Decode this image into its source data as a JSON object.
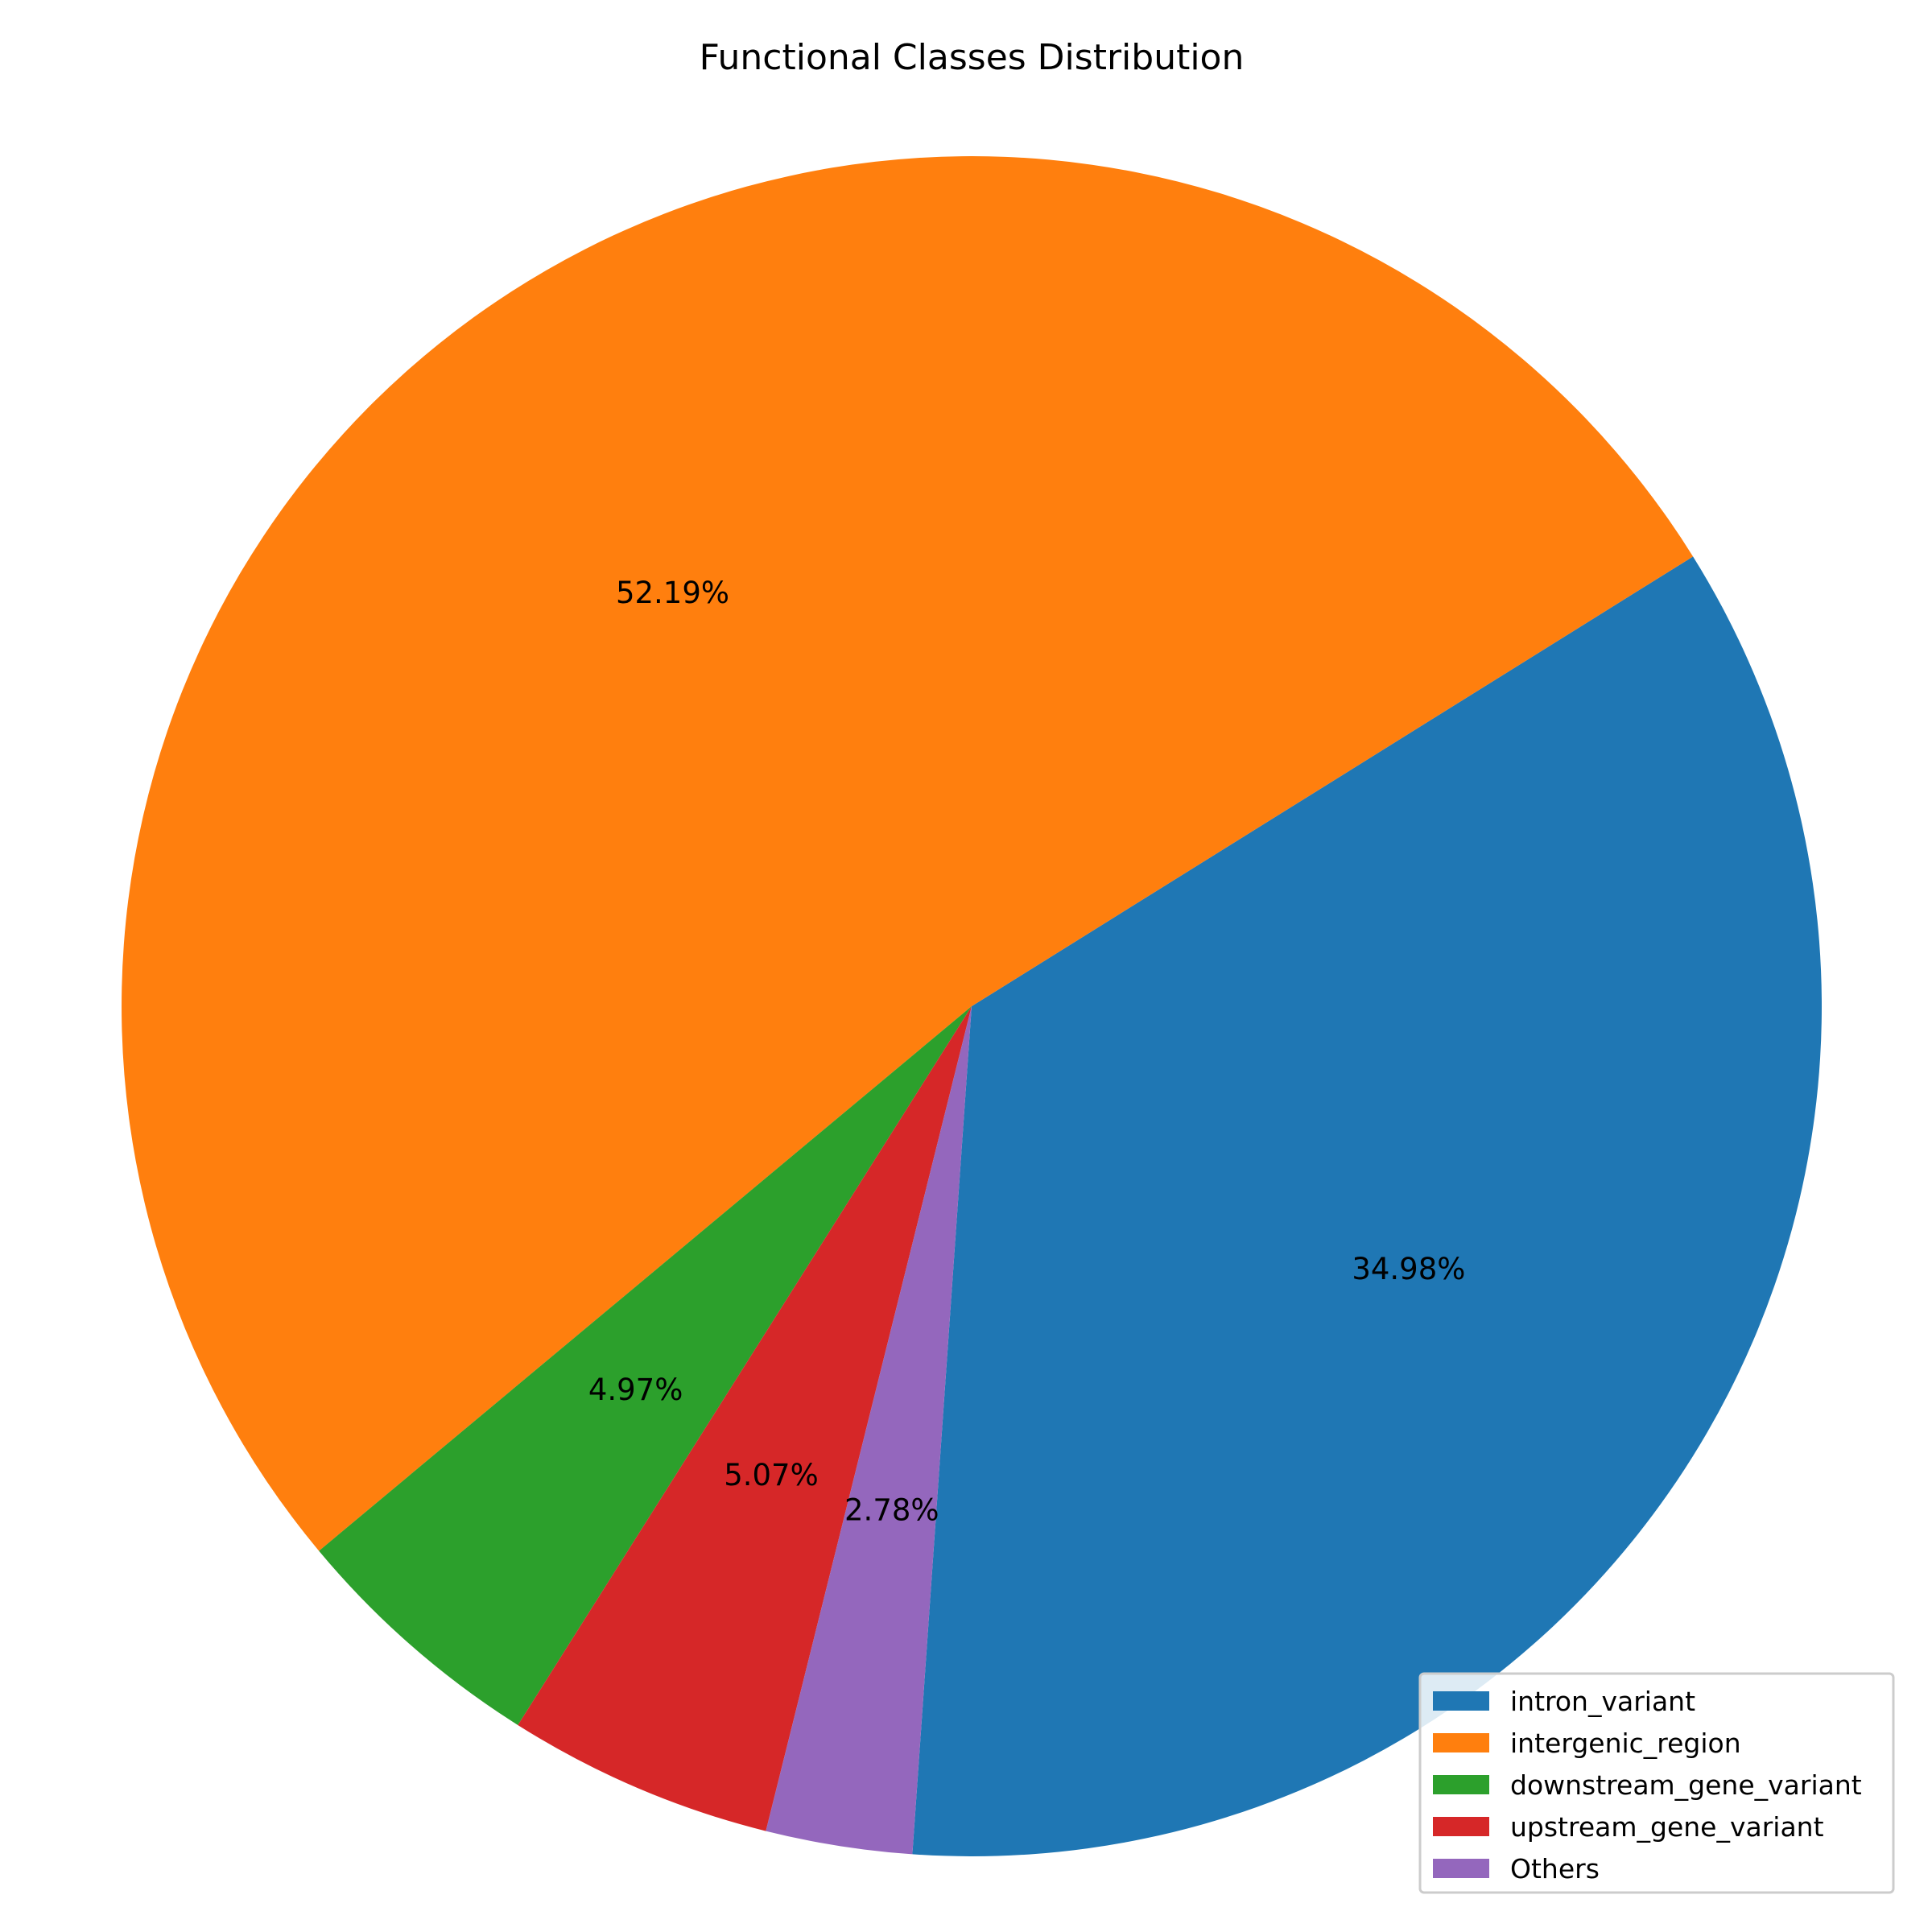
{
  "chart_data": {
    "type": "pie",
    "title": "Functional Classes Distribution",
    "start_angle_deg": 266,
    "direction": "counterclockwise",
    "legend_position": "bottom-right",
    "slices": [
      {
        "label": "intron_variant",
        "value": 34.98,
        "display": "34.98%",
        "color": "#1f77b4"
      },
      {
        "label": "intergenic_region",
        "value": 52.19,
        "display": "52.19%",
        "color": "#ff7f0e"
      },
      {
        "label": "downstream_gene_variant",
        "value": 4.97,
        "display": "4.97%",
        "color": "#2ca02c"
      },
      {
        "label": "upstream_gene_variant",
        "value": 5.07,
        "display": "5.07%",
        "color": "#d62728"
      },
      {
        "label": "Others",
        "value": 2.78,
        "display": "2.78%",
        "color": "#9467bd"
      }
    ]
  }
}
